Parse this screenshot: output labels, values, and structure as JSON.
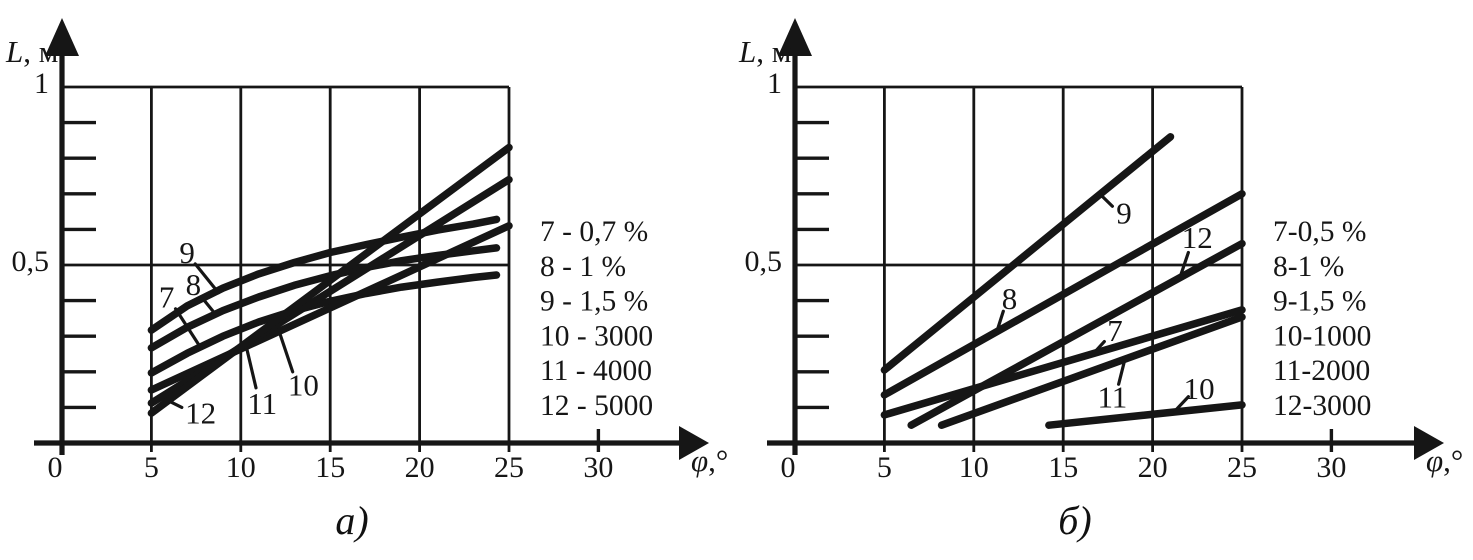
{
  "figure": {
    "background": "#ffffff",
    "ink_color": "#161616"
  },
  "chart_data": [
    {
      "type": "line",
      "panel_label": "а)",
      "xlabel": "φ,°",
      "ylabel": "L, м",
      "xlim": [
        0,
        30
      ],
      "ylim": [
        0,
        1
      ],
      "grid": "on",
      "grid_x": [
        5,
        10,
        15,
        20,
        25
      ],
      "grid_y": [
        0.5,
        1
      ],
      "xticks": [
        0,
        5,
        10,
        15,
        20,
        25,
        30
      ],
      "ytick_labels": [
        {
          "text": "1",
          "value": 1
        },
        {
          "text": "0,5",
          "value": 0.5
        }
      ],
      "yticks_minor": [
        0.1,
        0.2,
        0.3,
        0.4,
        0.6,
        0.7,
        0.8,
        0.9
      ],
      "legend_position": "right",
      "legend": [
        "7 - 0,7 %",
        "8 - 1 %",
        "9 - 1,5 %",
        "10 - 3000",
        "11 - 4000",
        "12 - 5000"
      ],
      "series": [
        {
          "name": "9",
          "points": [
            [
              5,
              0.317
            ],
            [
              7,
              0.385
            ],
            [
              9,
              0.435
            ],
            [
              11,
              0.475
            ],
            [
              13,
              0.507
            ],
            [
              15,
              0.535
            ],
            [
              17,
              0.557
            ],
            [
              19,
              0.578
            ],
            [
              21,
              0.598
            ],
            [
              23,
              0.615
            ],
            [
              24.3,
              0.628
            ]
          ],
          "label": {
            "at": [
              7.0,
              0.537
            ],
            "leader": [
              [
                7.45,
                0.503
              ],
              [
                8.75,
                0.422
              ]
            ]
          }
        },
        {
          "name": "8",
          "points": [
            [
              5,
              0.267
            ],
            [
              7,
              0.325
            ],
            [
              9,
              0.372
            ],
            [
              11,
              0.41
            ],
            [
              13,
              0.443
            ],
            [
              15,
              0.47
            ],
            [
              17,
              0.493
            ],
            [
              19,
              0.512
            ],
            [
              21,
              0.527
            ],
            [
              23,
              0.54
            ],
            [
              24.3,
              0.548
            ]
          ],
          "label": {
            "at": [
              7.35,
              0.447
            ],
            "leader": [
              [
                7.8,
                0.41
              ],
              [
                8.5,
                0.367
              ]
            ]
          }
        },
        {
          "name": "7",
          "points": [
            [
              5,
              0.197
            ],
            [
              7,
              0.252
            ],
            [
              9,
              0.3
            ],
            [
              11,
              0.34
            ],
            [
              13,
              0.372
            ],
            [
              15,
              0.398
            ],
            [
              17,
              0.42
            ],
            [
              19,
              0.438
            ],
            [
              21,
              0.452
            ],
            [
              23,
              0.465
            ],
            [
              24.3,
              0.472
            ]
          ],
          "label": {
            "at": [
              5.85,
              0.412
            ],
            "leader": [
              [
                6.35,
                0.377
              ],
              [
                7.7,
                0.272
              ]
            ]
          }
        },
        {
          "name": "10",
          "points": [
            [
              5,
              0.149
            ],
            [
              25,
              0.61
            ]
          ],
          "label": {
            "at": [
              13.5,
              0.165
            ],
            "leader": [
              [
                12.9,
                0.2
              ],
              [
                12.2,
                0.305
              ]
            ]
          }
        },
        {
          "name": "11",
          "points": [
            [
              5,
              0.112
            ],
            [
              25,
              0.74
            ]
          ],
          "label": {
            "at": [
              11.2,
              0.112
            ],
            "leader": [
              [
                10.85,
                0.155
              ],
              [
                10.3,
                0.272
              ]
            ]
          }
        },
        {
          "name": "12",
          "points": [
            [
              5,
              0.084
            ],
            [
              25,
              0.83
            ]
          ],
          "label": {
            "at": [
              7.75,
              0.085
            ],
            "leader": [
              [
                6.7,
                0.1
              ],
              [
                5.9,
                0.12
              ]
            ]
          }
        }
      ]
    },
    {
      "type": "line",
      "panel_label": "б)",
      "xlabel": "φ,°",
      "ylabel": "L, м",
      "xlim": [
        0,
        30
      ],
      "ylim": [
        0,
        1
      ],
      "grid": "on",
      "grid_x": [
        5,
        10,
        15,
        20,
        25
      ],
      "grid_y": [
        0.5,
        1
      ],
      "xticks": [
        0,
        5,
        10,
        15,
        20,
        25,
        30
      ],
      "ytick_labels": [
        {
          "text": "1",
          "value": 1
        },
        {
          "text": "0,5",
          "value": 0.5
        }
      ],
      "yticks_minor": [
        0.1,
        0.2,
        0.3,
        0.4,
        0.6,
        0.7,
        0.8,
        0.9
      ],
      "legend_position": "right",
      "legend": [
        "7-0,5 %",
        "8-1 %",
        "9-1,5 %",
        "10-1000",
        "11-2000",
        "12-3000"
      ],
      "series": [
        {
          "name": "9",
          "points": [
            [
              5,
              0.205
            ],
            [
              21,
              0.86
            ]
          ],
          "label": {
            "at": [
              18.4,
              0.648
            ],
            "leader": [
              [
                17.75,
                0.665
              ],
              [
                17.1,
                0.697
              ]
            ]
          }
        },
        {
          "name": "8",
          "points": [
            [
              5,
              0.135
            ],
            [
              25,
              0.7
            ]
          ],
          "label": {
            "at": [
              12.0,
              0.408
            ],
            "leader": [
              [
                11.65,
                0.37
              ],
              [
                11.3,
                0.315
              ]
            ]
          }
        },
        {
          "name": "12",
          "points": [
            [
              6.5,
              0.05
            ],
            [
              25,
              0.56
            ]
          ],
          "label": {
            "at": [
              22.5,
              0.578
            ],
            "leader": [
              [
                22.0,
                0.535
              ],
              [
                21.55,
                0.468
              ]
            ]
          }
        },
        {
          "name": "7",
          "points": [
            [
              5,
              0.079
            ],
            [
              25,
              0.374
            ]
          ],
          "label": {
            "at": [
              17.9,
              0.318
            ],
            "leader": [
              [
                17.3,
                0.285
              ],
              [
                16.7,
                0.252
              ]
            ]
          }
        },
        {
          "name": "11",
          "points": [
            [
              8.2,
              0.05
            ],
            [
              25,
              0.354
            ]
          ],
          "label": {
            "at": [
              17.75,
              0.13
            ],
            "leader": [
              [
                18.1,
                0.165
              ],
              [
                18.45,
                0.235
              ]
            ]
          }
        },
        {
          "name": "10",
          "points": [
            [
              14.2,
              0.05
            ],
            [
              25,
              0.107
            ]
          ],
          "label": {
            "at": [
              22.6,
              0.155
            ],
            "leader": [
              [
                22.0,
                0.13
              ],
              [
                21.25,
                0.09
              ]
            ]
          }
        }
      ]
    }
  ]
}
